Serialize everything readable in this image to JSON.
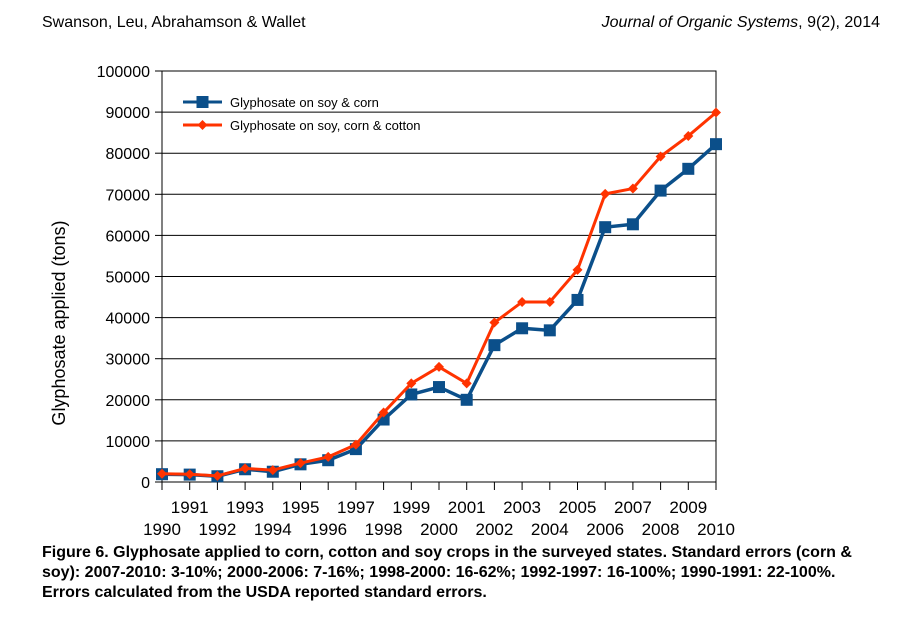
{
  "header": {
    "authors": "Swanson, Leu, Abrahamson & Wallet",
    "journal": "Journal of Organic Systems",
    "citation": ", 9(2), 2014"
  },
  "caption": "Figure 6. Glyphosate applied to corn, cotton and soy crops in the surveyed states. Standard errors (corn & soy): 2007-2010: 3-10%; 2000-2006: 7-16%; 1998-2000: 16-62%; 1992-1997: 16-100%; 1990-1991: 22-100%. Errors calculated from the USDA reported standard errors.",
  "chart_data": {
    "type": "line",
    "title": "",
    "xlabel": "",
    "ylabel": "Glyphosate applied (tons)",
    "x": [
      1990,
      1991,
      1992,
      1993,
      1994,
      1995,
      1996,
      1997,
      1998,
      1999,
      2000,
      2001,
      2002,
      2003,
      2004,
      2005,
      2006,
      2007,
      2008,
      2009,
      2010
    ],
    "ylim": [
      0,
      100000
    ],
    "yticks": [
      0,
      10000,
      20000,
      30000,
      40000,
      50000,
      60000,
      70000,
      80000,
      90000,
      100000
    ],
    "grid": true,
    "legend_position": "top-left",
    "series": [
      {
        "name": "Glyphosate on soy & corn",
        "color": "#0b4f8a",
        "marker": "square",
        "values": [
          1900,
          1800,
          1400,
          3100,
          2500,
          4300,
          5300,
          8000,
          15200,
          21300,
          23100,
          20000,
          33300,
          37400,
          36900,
          44300,
          62000,
          62700,
          70900,
          76200,
          82200
        ]
      },
      {
        "name": "Glyphosate on soy, corn & cotton",
        "color": "#ff3300",
        "marker": "diamond",
        "values": [
          2000,
          1900,
          1500,
          3300,
          2900,
          4600,
          6100,
          9100,
          16900,
          24000,
          28000,
          24000,
          38800,
          43800,
          43800,
          51600,
          70100,
          71400,
          79200,
          84200,
          89900
        ]
      }
    ]
  }
}
